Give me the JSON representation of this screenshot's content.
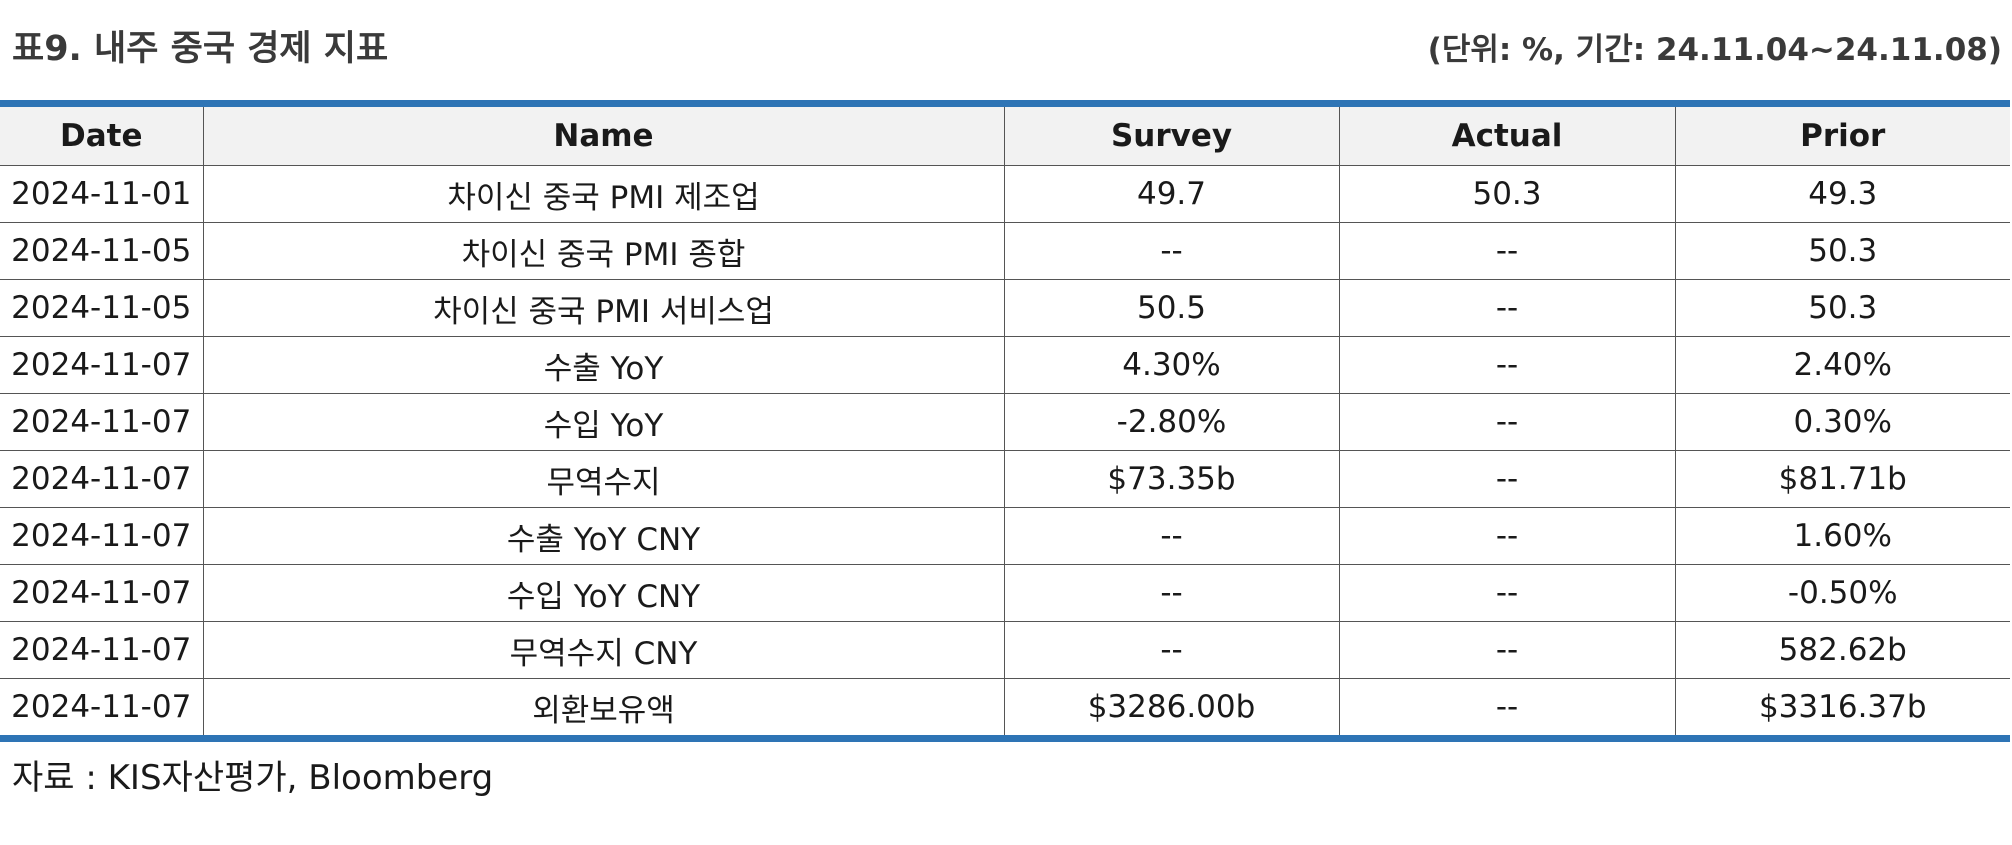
{
  "header": {
    "title": "표9. 내주 중국 경제 지표",
    "unit_period": "(단위: %, 기간: 24.11.04~24.11.08)"
  },
  "table": {
    "columns": [
      "Date",
      "Name",
      "Survey",
      "Actual",
      "Prior"
    ],
    "rows": [
      [
        "2024-11-01",
        "차이신 중국 PMI 제조업",
        "49.7",
        "50.3",
        "49.3"
      ],
      [
        "2024-11-05",
        "차이신 중국 PMI 종합",
        "--",
        "--",
        "50.3"
      ],
      [
        "2024-11-05",
        "차이신 중국 PMI 서비스업",
        "50.5",
        "--",
        "50.3"
      ],
      [
        "2024-11-07",
        "수출 YoY",
        "4.30%",
        "--",
        "2.40%"
      ],
      [
        "2024-11-07",
        "수입 YoY",
        "-2.80%",
        "--",
        "0.30%"
      ],
      [
        "2024-11-07",
        "무역수지",
        "$73.35b",
        "--",
        "$81.71b"
      ],
      [
        "2024-11-07",
        "수출 YoY CNY",
        "--",
        "--",
        "1.60%"
      ],
      [
        "2024-11-07",
        "수입 YoY CNY",
        "--",
        "--",
        "-0.50%"
      ],
      [
        "2024-11-07",
        "무역수지 CNY",
        "--",
        "--",
        "582.62b"
      ],
      [
        "2024-11-07",
        "외환보유액",
        "$3286.00b",
        "--",
        "$3316.37b"
      ]
    ]
  },
  "footer": {
    "source": "자료 : KIS자산평가, Bloomberg"
  },
  "colors": {
    "accent_rule": "#2e74b5",
    "header_bg": "#f2f2f2"
  }
}
